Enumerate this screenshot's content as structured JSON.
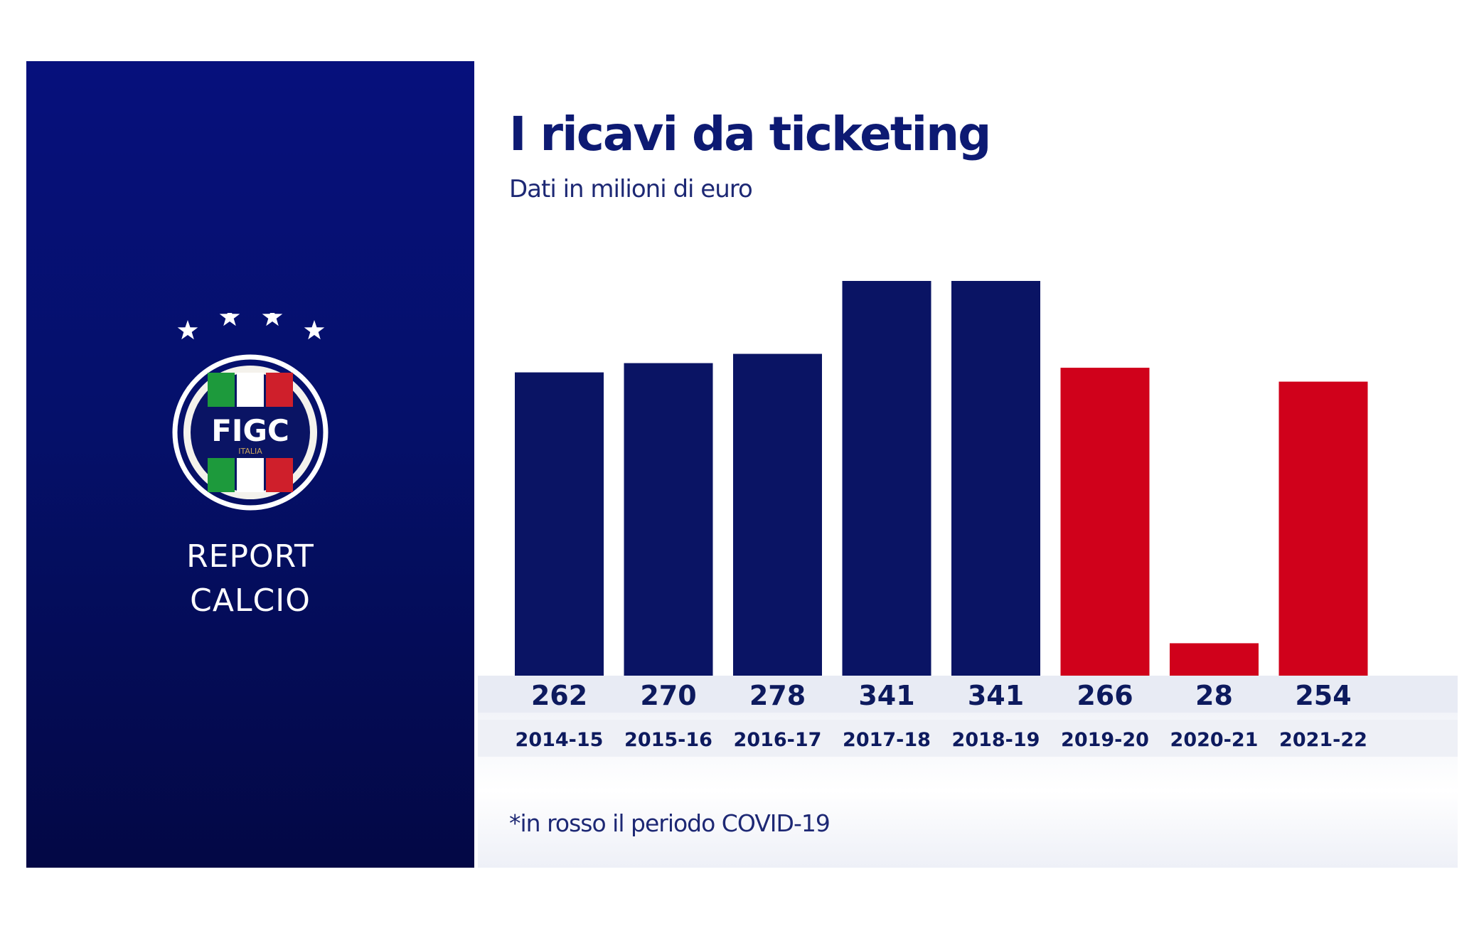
{
  "brand": {
    "logo_text": "FIGC",
    "logo_subtext": "ITALIA",
    "line1": "REPORT",
    "line2": "CALCIO"
  },
  "chart_data": {
    "type": "bar",
    "title": "I ricavi da ticketing",
    "subtitle": "Dati in milioni di euro",
    "footnote": "*in rosso il periodo COVID-19",
    "categories": [
      "2014-15",
      "2015-16",
      "2016-17",
      "2017-18",
      "2018-19",
      "2019-20",
      "2020-21",
      "2021-22"
    ],
    "values": [
      262,
      270,
      278,
      341,
      341,
      266,
      28,
      254
    ],
    "highlight": [
      false,
      false,
      false,
      false,
      false,
      true,
      true,
      true
    ],
    "colors": {
      "normal": "#0a1464",
      "highlight": "#d0011b"
    },
    "xlabel": "",
    "ylabel": "",
    "ylim": [
      0,
      341
    ],
    "grid": false,
    "legend": "none",
    "data_labels": true
  }
}
